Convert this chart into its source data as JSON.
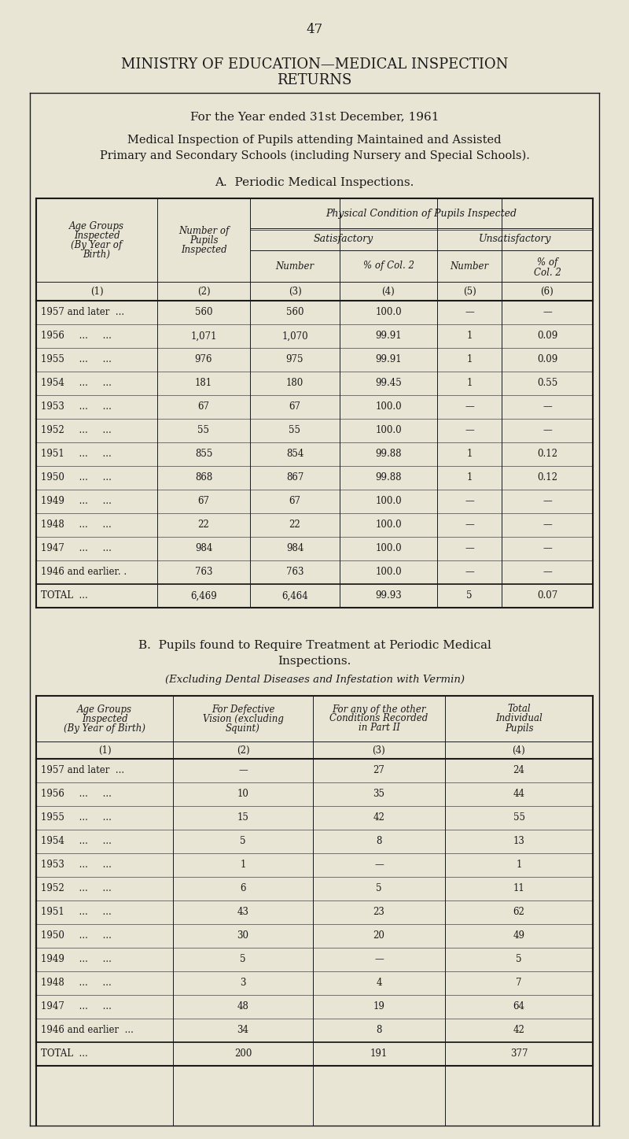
{
  "page_number": "47",
  "main_title_line1": "MINISTRY OF EDUCATION—MEDICAL INSPECTION",
  "main_title_line2": "RETURNS",
  "subtitle_year": "For the Year ended 31st December, 1961",
  "subtitle_desc_line1": "Medical Inspection of Pupils attending Maintained and Assisted",
  "subtitle_desc_line2": "Primary and Secondary Schools (including Nursery and Special Schools).",
  "section_a_title": "A.  Periodic Medical Inspections.",
  "table_a_header_phys": "Physical Condition of Pupils Inspected",
  "table_a_header_sat": "Satisfactory",
  "table_a_header_unsat": "Unsatisfactory",
  "table_a_col_nums": [
    "(1)",
    "(2)",
    "(3)",
    "(4)",
    "(5)",
    "(6)"
  ],
  "table_a_rows": [
    [
      "1957 and later  ...",
      "560",
      "560",
      "100.0",
      "—",
      "—"
    ],
    [
      "1956     ...     ...",
      "1,071",
      "1,070",
      "99.91",
      "1",
      "0.09"
    ],
    [
      "1955     ...     ...",
      "976",
      "975",
      "99.91",
      "1",
      "0.09"
    ],
    [
      "1954     ...     ...",
      "181",
      "180",
      "99.45",
      "1",
      "0.55"
    ],
    [
      "1953     ...     ...",
      "67",
      "67",
      "100.0",
      "—",
      "—"
    ],
    [
      "1952     ...     ...",
      "55",
      "55",
      "100.0",
      "—",
      "—"
    ],
    [
      "1951     ...     ...",
      "855",
      "854",
      "99.88",
      "1",
      "0.12"
    ],
    [
      "1950     ...     ...",
      "868",
      "867",
      "99.88",
      "1",
      "0.12"
    ],
    [
      "1949     ...     ...",
      "67",
      "67",
      "100.0",
      "—",
      "—"
    ],
    [
      "1948     ...     ...",
      "22",
      "22",
      "100.0",
      "—",
      "—"
    ],
    [
      "1947     ...     ...",
      "984",
      "984",
      "100.0",
      "—",
      "—"
    ],
    [
      "1946 and earlier. .",
      "763",
      "763",
      "100.0",
      "—",
      "—"
    ]
  ],
  "table_a_total": [
    "TOTAL  ...",
    "6,469",
    "6,464",
    "99.93",
    "5",
    "0.07"
  ],
  "section_b_title_line1": "B.  Pupils found to Require Treatment at Periodic Medical",
  "section_b_title_line2": "Inspections.",
  "section_b_subtitle": "(Excluding Dental Diseases and Infestation with Vermin)",
  "table_b_col_nums": [
    "(1)",
    "(2)",
    "(3)",
    "(4)"
  ],
  "table_b_rows": [
    [
      "1957 and later  ...",
      "—",
      "27",
      "24"
    ],
    [
      "1956     ...     ...",
      "10",
      "35",
      "44"
    ],
    [
      "1955     ...     ...",
      "15",
      "42",
      "55"
    ],
    [
      "1954     ...     ...",
      "5",
      "8",
      "13"
    ],
    [
      "1953     ...     ...",
      "1",
      "—",
      "1"
    ],
    [
      "1952     ...     ...",
      "6",
      "5",
      "11"
    ],
    [
      "1951     ...     ...",
      "43",
      "23",
      "62"
    ],
    [
      "1950     ...     ...",
      "30",
      "20",
      "49"
    ],
    [
      "1949     ...     ...",
      "5",
      "—",
      "5"
    ],
    [
      "1948     ...     ...",
      "3",
      "4",
      "7"
    ],
    [
      "1947     ...     ...",
      "48",
      "19",
      "64"
    ],
    [
      "1946 and earlier  ...",
      "34",
      "8",
      "42"
    ]
  ],
  "table_b_total": [
    "TOTAL  ...",
    "200",
    "191",
    "377"
  ],
  "bg_color": "#e8e5d5",
  "text_color": "#1a1a1a"
}
